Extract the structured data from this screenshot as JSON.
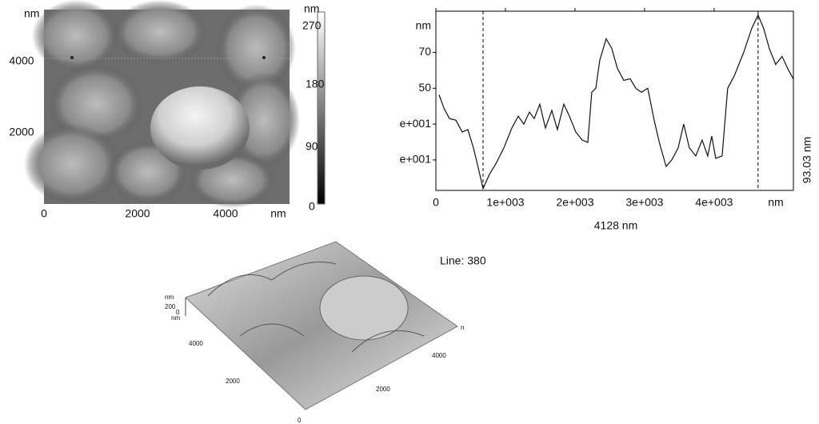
{
  "height_image": {
    "y_unit": "nm",
    "y_ticks": [
      "4000",
      "2000"
    ],
    "x_ticks": [
      "0",
      "2000",
      "4000"
    ],
    "x_unit": "nm",
    "colorbar_unit": "nm",
    "colorbar_ticks": [
      "270",
      "180",
      "90",
      "0"
    ]
  },
  "chart_data": {
    "type": "line",
    "y_unit": "nm",
    "x_unit": "nm",
    "x_label": "4128 nm",
    "y2_label": "93.03 nm",
    "x": [
      46,
      115,
      195,
      287,
      379,
      460,
      540,
      609,
      678,
      770,
      862,
      977,
      1092,
      1184,
      1264,
      1345,
      1414,
      1494,
      1575,
      1667,
      1747,
      1839,
      1920,
      2011,
      2103,
      2184,
      2241,
      2299,
      2356,
      2448,
      2529,
      2609,
      2701,
      2793,
      2874,
      2954,
      3046,
      3138,
      3218,
      3310,
      3391,
      3483,
      3563,
      3644,
      3736,
      3828,
      3908,
      3966,
      4023,
      4115,
      4195,
      4287,
      4425,
      4540,
      4632,
      4713,
      4793,
      4885,
      4977,
      5057,
      5138
    ],
    "series": [
      {
        "color": "#111111",
        "values": [
          46.4,
          38.9,
          33.1,
          32.2,
          25.6,
          26.9,
          16.7,
          5.6,
          -6,
          2,
          7.8,
          16.7,
          27.8,
          34.4,
          30,
          36.7,
          33.1,
          41.1,
          27.8,
          37.6,
          26.9,
          41.1,
          34.4,
          25.6,
          21.1,
          19.8,
          47.8,
          50,
          65.6,
          77.6,
          72.2,
          61.1,
          54.4,
          55.3,
          50,
          47.8,
          50,
          32.2,
          18.9,
          6.4,
          10,
          16.7,
          30,
          16.7,
          12.2,
          21.1,
          12.2,
          23.3,
          10.9,
          12.2,
          50,
          56.7,
          70,
          83.3,
          90.9,
          83.3,
          72.2,
          63.3,
          67.8,
          61.1,
          55.3
        ]
      }
    ],
    "markers_x": [
      678,
      4632
    ],
    "xlim": [
      0,
      5140
    ],
    "ylim": [
      -7,
      93
    ],
    "xticks": [
      0,
      {
        "value": 1000,
        "label": "1e+003"
      },
      {
        "value": 2000,
        "label": "2e+003"
      },
      {
        "value": 3000,
        "label": "3e+003"
      },
      {
        "value": 4000,
        "label": "4e+003"
      }
    ],
    "yticks": [
      {
        "value": 10,
        "label": "e+001"
      },
      {
        "value": 30,
        "label": "e+001"
      },
      50,
      70
    ]
  },
  "line_label": "Line: 380",
  "surface_3d": {
    "z_unit_top": "nm",
    "z_ticks": [
      "200",
      "0"
    ],
    "z_unit_bottom": "nm",
    "y_ticks": [
      "4000",
      "2000"
    ],
    "origin": "0",
    "x_ticks": [
      "4000",
      "2000"
    ],
    "x_unit": "n"
  }
}
